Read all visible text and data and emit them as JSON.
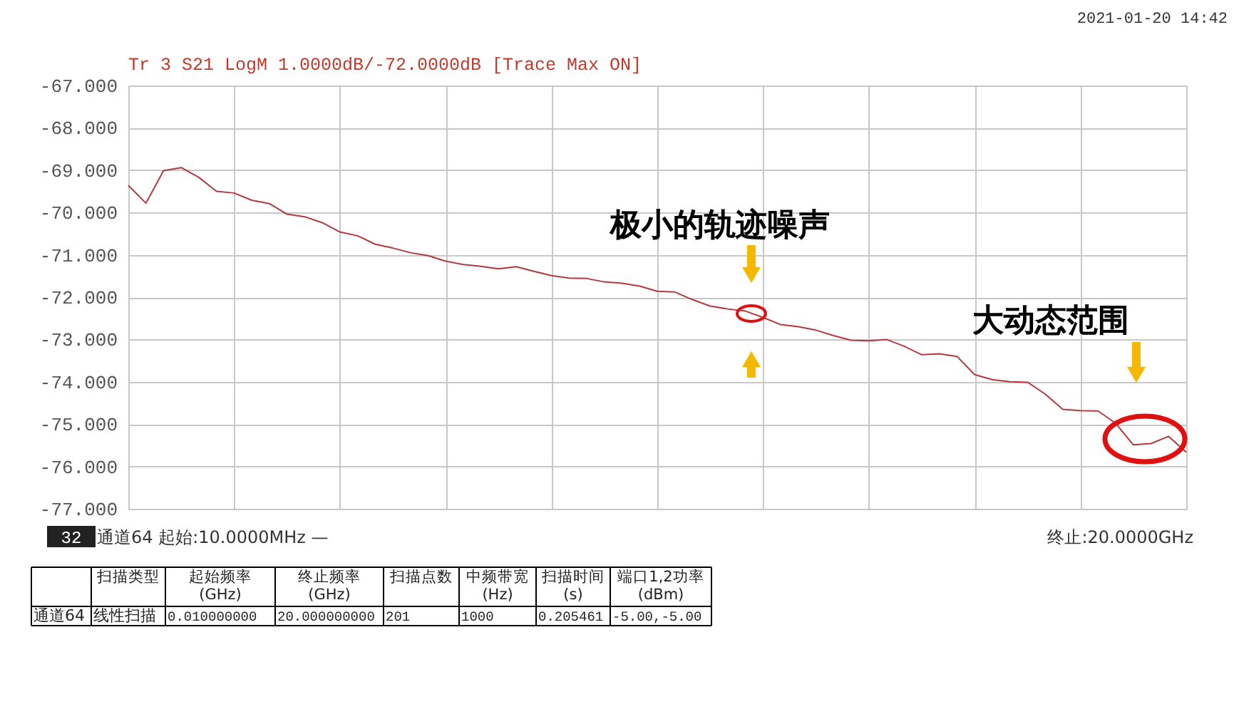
{
  "chart_data": {
    "type": "line",
    "title": "Tr 3  S21 LogM 1.0000dB/-72.0000dB  [Trace Max ON]",
    "categories": [
      null,
      null,
      null,
      null,
      null,
      null,
      null,
      null,
      null,
      null,
      null,
      null,
      null,
      null,
      null,
      null,
      null,
      null,
      null,
      null,
      null,
      null,
      null,
      null,
      null,
      null,
      null,
      null,
      null,
      null,
      null,
      null,
      null,
      null,
      null,
      null,
      null,
      null,
      null,
      null,
      null,
      null,
      null,
      null,
      null,
      null,
      null,
      null,
      null,
      null,
      null,
      null,
      null,
      null,
      null,
      null,
      null,
      null,
      null,
      null,
      null
    ],
    "series": [
      {
        "color": "#b3393f",
        "values": [
          -69.36,
          -69.78,
          -69.01,
          -68.94,
          -69.17,
          -69.5,
          -69.54,
          -69.71,
          -69.79,
          -70.04,
          -70.1,
          -70.24,
          -70.46,
          -70.55,
          -70.75,
          -70.84,
          -70.95,
          -71.02,
          -71.15,
          -71.23,
          -71.27,
          -71.33,
          -71.28,
          -71.39,
          -71.49,
          -71.55,
          -71.56,
          -71.64,
          -71.67,
          -71.74,
          -71.86,
          -71.88,
          -72.06,
          -72.21,
          -72.28,
          -72.33,
          -72.48,
          -72.65,
          -72.7,
          -72.78,
          -72.91,
          -73.02,
          -73.03,
          -73.0,
          -73.16,
          -73.36,
          -73.34,
          -73.4,
          -73.83,
          -73.95,
          -74.0,
          -74.01,
          -74.29,
          -74.65,
          -74.68,
          -74.69,
          -74.98,
          -75.49,
          -75.46,
          -75.29,
          -75.66
        ]
      }
    ],
    "ylim": [
      -77,
      -67
    ],
    "yticks": [
      {
        "value": -77,
        "label": "-77.000"
      },
      {
        "value": -76,
        "label": "-76.000"
      },
      {
        "value": -75,
        "label": "-75.000"
      },
      {
        "value": -74,
        "label": "-74.000"
      },
      {
        "value": -73,
        "label": "-73.000"
      },
      {
        "value": -72,
        "label": "-72.000"
      },
      {
        "value": -71,
        "label": "-71.000"
      },
      {
        "value": -70,
        "label": "-70.000"
      },
      {
        "value": -69,
        "label": "-69.000"
      },
      {
        "value": -68,
        "label": "-68.000"
      },
      {
        "value": -67,
        "label": "-67.000"
      }
    ],
    "grid": true,
    "tick_labels": "y",
    "annotations": [
      "2021-01-20 14:42",
      "32",
      "通道64 起始:10.0000MHz —",
      "终止:20.0000GHz",
      "极小的轨迹噪声",
      "大动态范围",
      "扫描类型",
      "起始频率\n(GHz)",
      "终止频率\n(GHz)",
      "扫描点数",
      "中频带宽\n(Hz)",
      "扫描时间\n(s)",
      "端口1,2功率\n(dBm)",
      "通道64",
      "线性扫描",
      "0.010000000",
      "20.000000000",
      "201",
      "1000",
      "0.205461",
      "-5.00,-5.00"
    ]
  }
}
